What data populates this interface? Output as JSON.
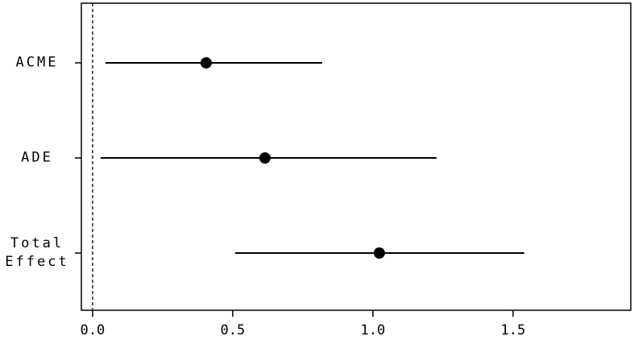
{
  "chart_data": {
    "type": "errorbar",
    "categories": [
      "ACME",
      "ADE",
      "Total Effect"
    ],
    "values": [
      0.405,
      0.615,
      1.023
    ],
    "lower": [
      0.046,
      0.029,
      0.509
    ],
    "upper": [
      0.819,
      1.227,
      1.54
    ],
    "color": "#000000",
    "reference_line": 0,
    "xlim": [
      -0.04,
      1.92
    ],
    "xticks": [
      {
        "value": 0,
        "label": "0.0"
      },
      0.5,
      {
        "value": 1,
        "label": "1.0"
      },
      1.5
    ]
  }
}
